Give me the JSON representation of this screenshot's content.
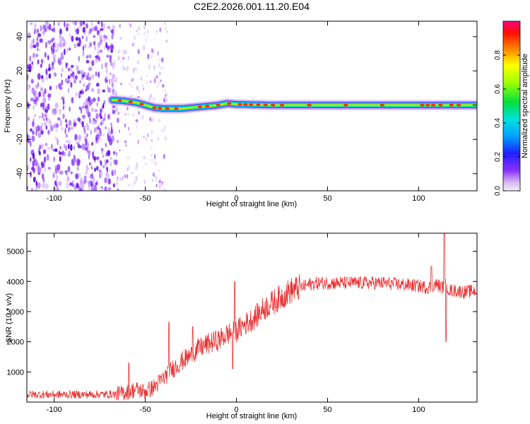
{
  "page": {
    "title": "C2E2.2026.001.11.20.E04"
  },
  "chart_data": [
    {
      "type": "heatmap",
      "title": "C2E2.2026.001.11.20.E04",
      "xlabel": "Height of straight line (km)",
      "ylabel": "Frequency (Hz)",
      "xlim": [
        -115,
        132
      ],
      "ylim": [
        -50,
        49
      ],
      "x_ticks": [
        -100,
        -50,
        0,
        50,
        100
      ],
      "y_ticks": [
        40,
        20,
        0,
        -20,
        -40
      ],
      "colorbar": {
        "label": "Normalized spectral amplitude",
        "range": [
          0,
          1
        ],
        "ticks": [
          0.0,
          0.2,
          0.4,
          0.6,
          0.8
        ]
      },
      "features": {
        "noise_region_x": [
          -115,
          -66
        ],
        "sparse_noise_x": [
          -66,
          -38
        ],
        "signal_start_x": -68,
        "signal_line": {
          "x": [
            -68,
            -62,
            -55,
            -50,
            -45,
            -40,
            -30,
            -20,
            -10,
            -5,
            0,
            20,
            50,
            100,
            132
          ],
          "freq_hz": [
            3,
            2.5,
            1.5,
            0,
            -1.5,
            -2,
            -2,
            -1,
            0,
            1,
            0.5,
            0,
            0,
            0,
            0
          ]
        }
      }
    },
    {
      "type": "line",
      "xlabel": "Height of straight line (km)",
      "ylabel": "SNR (10 * v/v)",
      "xlim": [
        -115,
        132
      ],
      "ylim": [
        0,
        5600
      ],
      "x_ticks": [
        -100,
        -50,
        0,
        50,
        100
      ],
      "y_ticks": [
        1000,
        2000,
        3000,
        4000,
        5000
      ],
      "color": "#e83030",
      "series": [
        {
          "name": "SNR",
          "x": [
            -115,
            -100,
            -80,
            -65,
            -58,
            -55,
            -50,
            -45,
            -40,
            -35,
            -30,
            -25,
            -20,
            -15,
            -10,
            -5,
            0,
            5,
            10,
            15,
            20,
            25,
            30,
            35,
            40,
            45,
            50,
            60,
            70,
            80,
            90,
            100,
            105,
            110,
            113,
            115,
            117,
            120,
            125,
            132
          ],
          "y": [
            250,
            250,
            250,
            260,
            380,
            420,
            350,
            500,
            800,
            1100,
            1350,
            1550,
            1800,
            1950,
            2050,
            2250,
            2350,
            2600,
            2800,
            3100,
            3300,
            3500,
            3700,
            3800,
            3900,
            3950,
            3950,
            3950,
            3950,
            3950,
            3900,
            3850,
            3800,
            3900,
            3800,
            3900,
            3700,
            3700,
            3650,
            3700
          ]
        }
      ],
      "spikes": [
        {
          "x": -59,
          "y": 1300
        },
        {
          "x": -37,
          "y": 2650
        },
        {
          "x": -24,
          "y": 2500
        },
        {
          "x": -1,
          "y": 4000
        },
        {
          "x": -2,
          "y": 1100
        },
        {
          "x": 107,
          "y": 4500
        },
        {
          "x": 114,
          "y": 5600
        },
        {
          "x": 115,
          "y": 2000
        }
      ]
    }
  ]
}
